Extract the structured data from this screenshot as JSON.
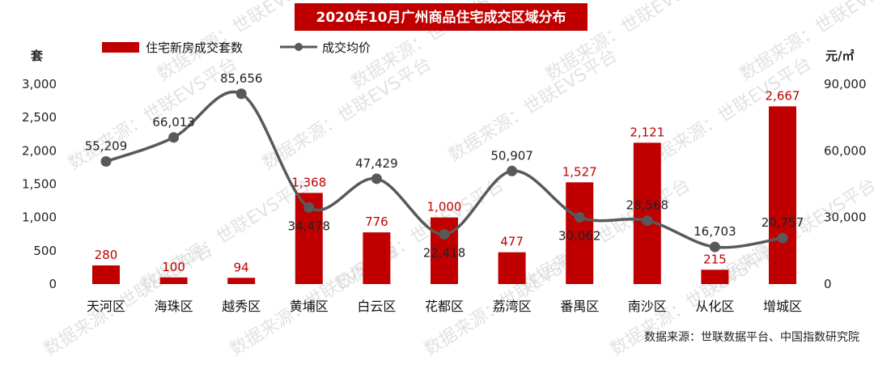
{
  "chart_data": {
    "type": "bar+line",
    "title": "2020年10月广州商品住宅成交区域分布",
    "categories": [
      "天河区",
      "海珠区",
      "越秀区",
      "黄埔区",
      "白云区",
      "花都区",
      "荔湾区",
      "番禺区",
      "南沙区",
      "从化区",
      "增城区"
    ],
    "series": [
      {
        "name": "住宅新房成交套数",
        "type": "bar",
        "axis": "left",
        "color": "#c00000",
        "values": [
          280,
          100,
          94,
          1368,
          776,
          1000,
          477,
          1527,
          2121,
          215,
          2667
        ],
        "labels": [
          "280",
          "100",
          "94",
          "1,368",
          "776",
          "1,000",
          "477",
          "1,527",
          "2,121",
          "215",
          "2,667"
        ]
      },
      {
        "name": "成交均价",
        "type": "line",
        "axis": "right",
        "color": "#595959",
        "values": [
          55209,
          66013,
          85656,
          34478,
          47429,
          22418,
          50907,
          30062,
          28568,
          16703,
          20757
        ],
        "labels": [
          "55,209",
          "66,013",
          "85,656",
          "34,478",
          "47,429",
          "22,418",
          "50,907",
          "30,062",
          "28,568",
          "16,703",
          "20,757"
        ]
      }
    ],
    "y_left": {
      "unit": "套",
      "range": [
        0,
        3000
      ],
      "ticks": [
        0,
        500,
        1000,
        1500,
        2000,
        2500,
        3000
      ],
      "tick_labels": [
        "0",
        "500",
        "1,000",
        "1,500",
        "2,000",
        "2,500",
        "3,000"
      ]
    },
    "y_right": {
      "unit": "元/㎡",
      "range": [
        0,
        90000
      ],
      "ticks": [
        0,
        30000,
        60000,
        90000
      ],
      "tick_labels": [
        "0",
        "30,000",
        "60,000",
        "90,000"
      ]
    },
    "legend": "top-left",
    "grid": false
  },
  "source": "数据来源：世联数据平台、中国指数研究院",
  "watermark": "数据来源：世联EVS平台"
}
